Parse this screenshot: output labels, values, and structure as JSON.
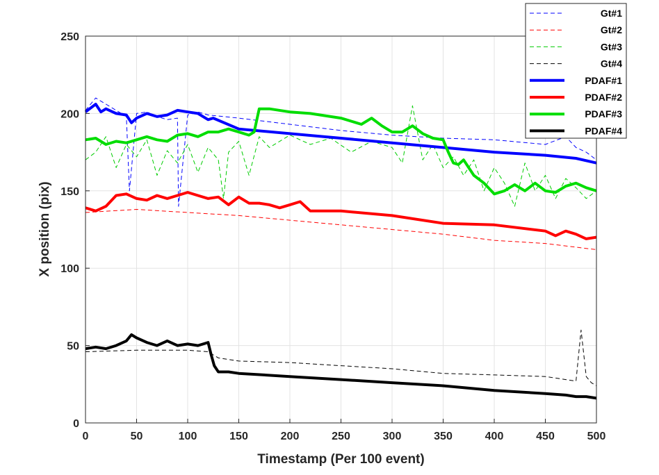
{
  "chart_data": {
    "type": "line",
    "xlabel": "Timestamp (Per 100 event)",
    "ylabel": "X position (pix)",
    "xlim": [
      0,
      500
    ],
    "ylim": [
      0,
      250
    ],
    "xticks": [
      0,
      50,
      100,
      150,
      200,
      250,
      300,
      350,
      400,
      450,
      500
    ],
    "yticks": [
      0,
      50,
      100,
      150,
      200,
      250
    ],
    "grid": true,
    "legend_position": "top-right",
    "series": [
      {
        "name": "Gt#1",
        "color": "#0000ff",
        "style": "dashed",
        "x": [
          0,
          10,
          20,
          30,
          40,
          43,
          50,
          60,
          70,
          80,
          90,
          91,
          100,
          110,
          120,
          150,
          200,
          250,
          300,
          350,
          400,
          450,
          470,
          480,
          490,
          500
        ],
        "y": [
          202,
          210,
          206,
          202,
          198,
          150,
          200,
          201,
          198,
          196,
          197,
          140,
          199,
          201,
          199,
          197,
          193,
          189,
          186,
          184,
          183,
          180,
          185,
          178,
          175,
          170
        ]
      },
      {
        "name": "Gt#2",
        "color": "#ff0000",
        "style": "dashed",
        "x": [
          0,
          50,
          100,
          150,
          200,
          250,
          300,
          350,
          400,
          450,
          500
        ],
        "y": [
          136,
          138,
          136,
          134,
          131,
          128,
          125,
          122,
          118,
          116,
          112
        ]
      },
      {
        "name": "Gt#3",
        "color": "#00cc00",
        "style": "dashed",
        "x": [
          0,
          10,
          20,
          30,
          40,
          50,
          60,
          70,
          80,
          90,
          100,
          110,
          120,
          130,
          135,
          140,
          150,
          160,
          170,
          180,
          200,
          220,
          240,
          260,
          280,
          300,
          310,
          320,
          330,
          340,
          350,
          360,
          370,
          380,
          390,
          400,
          410,
          420,
          430,
          440,
          450,
          460,
          470,
          480,
          490,
          500
        ],
        "y": [
          170,
          175,
          185,
          165,
          180,
          172,
          183,
          160,
          176,
          168,
          180,
          162,
          178,
          170,
          145,
          175,
          182,
          160,
          185,
          178,
          186,
          180,
          184,
          175,
          182,
          178,
          168,
          205,
          170,
          180,
          165,
          172,
          160,
          170,
          150,
          165,
          155,
          140,
          168,
          150,
          160,
          145,
          158,
          152,
          145,
          150
        ]
      },
      {
        "name": "Gt#4",
        "color": "#000000",
        "style": "dashed",
        "x": [
          0,
          50,
          100,
          120,
          125,
          130,
          150,
          200,
          250,
          300,
          350,
          400,
          450,
          470,
          480,
          485,
          490,
          495,
          500
        ],
        "y": [
          46,
          47,
          47,
          46,
          44,
          42,
          40,
          39,
          37,
          35,
          32,
          31,
          30,
          28,
          27,
          60,
          30,
          26,
          24
        ]
      },
      {
        "name": "PDAF#1",
        "color": "#0000ff",
        "style": "solid",
        "x": [
          0,
          10,
          15,
          20,
          30,
          40,
          45,
          50,
          60,
          70,
          80,
          90,
          100,
          110,
          120,
          125,
          150,
          200,
          250,
          300,
          350,
          400,
          450,
          480,
          500
        ],
        "y": [
          201,
          206,
          201,
          203,
          200,
          199,
          194,
          197,
          200,
          198,
          199,
          202,
          201,
          200,
          196,
          197,
          190,
          187,
          184,
          181,
          178,
          175,
          173,
          171,
          168
        ]
      },
      {
        "name": "PDAF#2",
        "color": "#ff0000",
        "style": "solid",
        "x": [
          0,
          10,
          20,
          30,
          40,
          50,
          60,
          70,
          80,
          90,
          100,
          110,
          120,
          130,
          140,
          150,
          160,
          170,
          180,
          190,
          200,
          210,
          220,
          230,
          250,
          300,
          350,
          400,
          450,
          460,
          470,
          480,
          490,
          500
        ],
        "y": [
          139,
          137,
          140,
          147,
          148,
          145,
          144,
          147,
          145,
          147,
          149,
          147,
          145,
          146,
          141,
          146,
          142,
          142,
          141,
          139,
          141,
          143,
          137,
          137,
          137,
          134,
          129,
          128,
          124,
          121,
          124,
          122,
          119,
          120
        ]
      },
      {
        "name": "PDAF#3",
        "color": "#00dd00",
        "style": "solid",
        "x": [
          0,
          10,
          20,
          30,
          40,
          50,
          60,
          70,
          80,
          90,
          100,
          110,
          120,
          130,
          140,
          150,
          160,
          165,
          170,
          180,
          200,
          220,
          250,
          270,
          280,
          290,
          300,
          310,
          320,
          330,
          340,
          350,
          355,
          360,
          365,
          370,
          380,
          390,
          400,
          410,
          420,
          430,
          440,
          450,
          460,
          470,
          480,
          490,
          500
        ],
        "y": [
          183,
          184,
          180,
          182,
          181,
          183,
          185,
          183,
          182,
          186,
          187,
          185,
          188,
          188,
          190,
          188,
          186,
          188,
          203,
          203,
          201,
          200,
          197,
          193,
          197,
          192,
          188,
          188,
          192,
          187,
          184,
          183,
          175,
          168,
          167,
          170,
          160,
          155,
          148,
          150,
          154,
          150,
          155,
          150,
          149,
          153,
          155,
          152,
          150
        ]
      },
      {
        "name": "PDAF#4",
        "color": "#000000",
        "style": "solid",
        "x": [
          0,
          10,
          20,
          30,
          40,
          45,
          50,
          60,
          70,
          80,
          90,
          100,
          110,
          120,
          123,
          126,
          130,
          140,
          150,
          200,
          250,
          300,
          350,
          400,
          450,
          470,
          480,
          490,
          500
        ],
        "y": [
          48,
          49,
          48,
          50,
          53,
          57,
          55,
          52,
          50,
          53,
          50,
          51,
          50,
          52,
          44,
          37,
          33,
          33,
          32,
          30,
          28,
          26,
          24,
          21,
          19,
          18,
          17,
          17,
          16
        ]
      }
    ]
  }
}
